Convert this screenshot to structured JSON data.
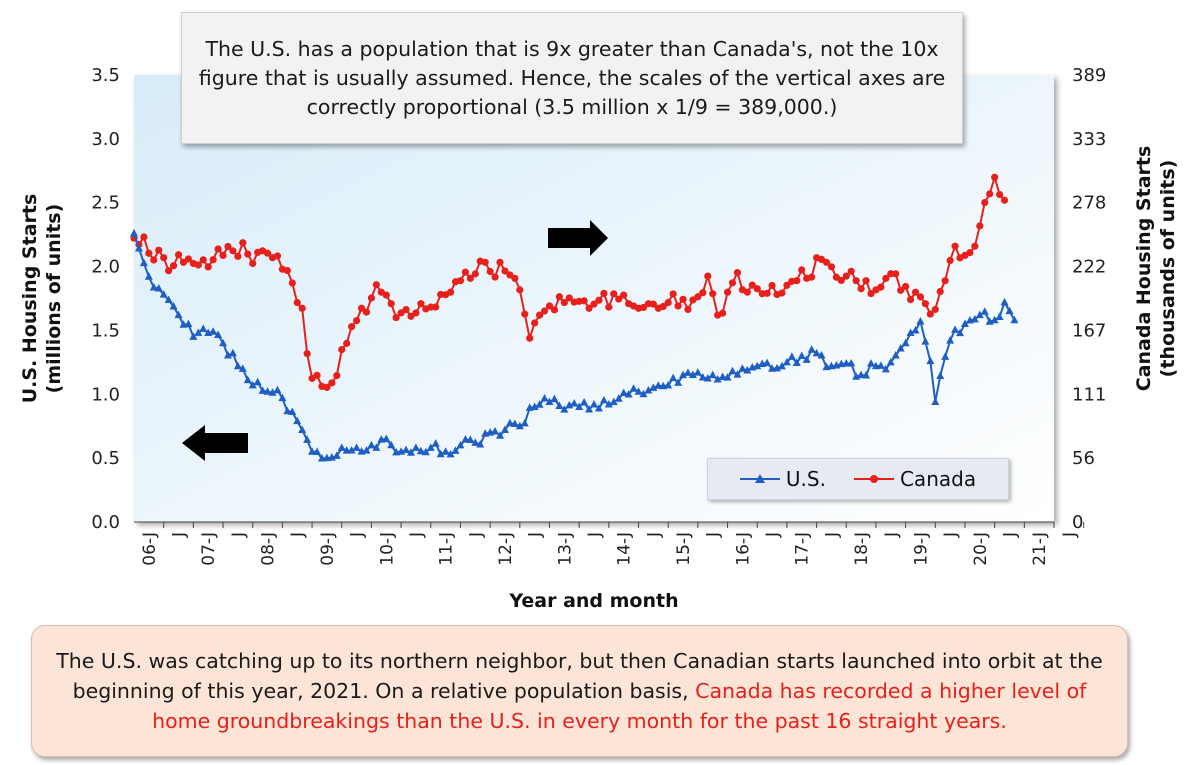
{
  "chart_data": {
    "type": "line",
    "annotation_top": "The U.S. has a population that is 9x greater than Canada's, not the 10x figure that is usually assumed. Hence, the scales of the  vertical axes are correctly proportional (3.5 million x 1/9 = 389,000.)",
    "annotation_bottom": {
      "normal": "The U.S. was catching up to its northern neighbor, but then Canadian starts launched into orbit at the beginning of this year, 2021. On a relative population basis, ",
      "highlight": "Canada has recorded a higher level of home groundbreakings than the U.S. in every month for the past 16 straight  years."
    },
    "xlabel": "Year and month",
    "ylabel_left": "U.S. Housing Starts\n(millions of units)",
    "ylabel_right": "Canada Housing Starts\n(thousands of units)",
    "ylim_left": [
      0,
      3.5
    ],
    "ylim_right": [
      0,
      389
    ],
    "yticks_left": [
      "0.0",
      "0.5",
      "1.0",
      "1.5",
      "2.0",
      "2.5",
      "3.0",
      "3.5"
    ],
    "yticks_right": [
      "0",
      "56",
      "111",
      "167",
      "222",
      "278",
      "333",
      "389"
    ],
    "xtick_labels": [
      "06-J",
      "J",
      "07-J",
      "J",
      "08-J",
      "J",
      "09-J",
      "J",
      "10-J",
      "J",
      "11-J",
      "J",
      "12-J",
      "J",
      "13-J",
      "J",
      "14-J",
      "J",
      "15-J",
      "J",
      "16-J",
      "J",
      "17-J",
      "J",
      "18-J",
      "J",
      "19-J",
      "J",
      "20-J",
      "J",
      "21-J",
      "J"
    ],
    "legend_position": "bottom-right",
    "colors": {
      "us": "#1f5fc4",
      "canada": "#e8201c",
      "arrow": "#000000"
    },
    "series": [
      {
        "name": "U.S.",
        "axis": "left",
        "anchors": [
          [
            0,
            2.26
          ],
          [
            3,
            1.92
          ],
          [
            6,
            1.78
          ],
          [
            9,
            1.62
          ],
          [
            12,
            1.45
          ],
          [
            15,
            1.48
          ],
          [
            18,
            1.4
          ],
          [
            21,
            1.22
          ],
          [
            24,
            1.07
          ],
          [
            27,
            1.02
          ],
          [
            30,
            0.97
          ],
          [
            33,
            0.79
          ],
          [
            36,
            0.55
          ],
          [
            39,
            0.5
          ],
          [
            42,
            0.58
          ],
          [
            45,
            0.58
          ],
          [
            48,
            0.6
          ],
          [
            51,
            0.65
          ],
          [
            54,
            0.55
          ],
          [
            57,
            0.58
          ],
          [
            60,
            0.58
          ],
          [
            63,
            0.55
          ],
          [
            66,
            0.6
          ],
          [
            69,
            0.62
          ],
          [
            72,
            0.7
          ],
          [
            75,
            0.72
          ],
          [
            78,
            0.75
          ],
          [
            81,
            0.9
          ],
          [
            84,
            0.94
          ],
          [
            87,
            0.88
          ],
          [
            90,
            0.9
          ],
          [
            93,
            0.92
          ],
          [
            96,
            0.92
          ],
          [
            99,
            1.01
          ],
          [
            102,
            1.02
          ],
          [
            105,
            1.05
          ],
          [
            108,
            1.07
          ],
          [
            111,
            1.15
          ],
          [
            114,
            1.17
          ],
          [
            117,
            1.15
          ],
          [
            120,
            1.13
          ],
          [
            123,
            1.2
          ],
          [
            126,
            1.22
          ],
          [
            129,
            1.2
          ],
          [
            132,
            1.25
          ],
          [
            135,
            1.3
          ],
          [
            138,
            1.32
          ],
          [
            141,
            1.22
          ],
          [
            144,
            1.24
          ],
          [
            147,
            1.15
          ],
          [
            150,
            1.22
          ],
          [
            153,
            1.25
          ],
          [
            156,
            1.4
          ],
          [
            159,
            1.57
          ],
          [
            161,
            1.26
          ],
          [
            162,
            0.94
          ],
          [
            165,
            1.42
          ],
          [
            168,
            1.55
          ],
          [
            171,
            1.62
          ],
          [
            174,
            1.58
          ],
          [
            176,
            1.72
          ],
          [
            178,
            1.58
          ]
        ],
        "wiggle": 0.045
      },
      {
        "name": "Canada",
        "axis": "right",
        "anchors": [
          [
            0,
            247
          ],
          [
            2,
            248
          ],
          [
            4,
            228
          ],
          [
            6,
            230
          ],
          [
            8,
            223
          ],
          [
            10,
            226
          ],
          [
            12,
            225
          ],
          [
            15,
            222
          ],
          [
            18,
            232
          ],
          [
            20,
            236
          ],
          [
            22,
            243
          ],
          [
            24,
            225
          ],
          [
            26,
            236
          ],
          [
            28,
            230
          ],
          [
            30,
            220
          ],
          [
            32,
            208
          ],
          [
            34,
            186
          ],
          [
            36,
            125
          ],
          [
            38,
            118
          ],
          [
            40,
            121
          ],
          [
            42,
            150
          ],
          [
            44,
            170
          ],
          [
            46,
            186
          ],
          [
            48,
            195
          ],
          [
            50,
            200
          ],
          [
            52,
            190
          ],
          [
            54,
            182
          ],
          [
            56,
            179
          ],
          [
            58,
            190
          ],
          [
            60,
            187
          ],
          [
            62,
            198
          ],
          [
            64,
            200
          ],
          [
            66,
            210
          ],
          [
            68,
            212
          ],
          [
            70,
            227
          ],
          [
            72,
            218
          ],
          [
            74,
            226
          ],
          [
            76,
            215
          ],
          [
            78,
            202
          ],
          [
            80,
            160
          ],
          [
            82,
            180
          ],
          [
            84,
            188
          ],
          [
            86,
            196
          ],
          [
            88,
            195
          ],
          [
            90,
            192
          ],
          [
            92,
            186
          ],
          [
            94,
            193
          ],
          [
            96,
            187
          ],
          [
            98,
            194
          ],
          [
            100,
            190
          ],
          [
            102,
            186
          ],
          [
            104,
            190
          ],
          [
            106,
            186
          ],
          [
            108,
            191
          ],
          [
            110,
            188
          ],
          [
            112,
            185
          ],
          [
            114,
            196
          ],
          [
            116,
            214
          ],
          [
            118,
            180
          ],
          [
            120,
            200
          ],
          [
            122,
            217
          ],
          [
            124,
            200
          ],
          [
            126,
            203
          ],
          [
            128,
            199
          ],
          [
            130,
            198
          ],
          [
            132,
            206
          ],
          [
            134,
            210
          ],
          [
            136,
            212
          ],
          [
            138,
            230
          ],
          [
            140,
            226
          ],
          [
            142,
            213
          ],
          [
            144,
            214
          ],
          [
            146,
            210
          ],
          [
            148,
            210
          ],
          [
            150,
            202
          ],
          [
            152,
            212
          ],
          [
            154,
            216
          ],
          [
            156,
            205
          ],
          [
            158,
            200
          ],
          [
            160,
            190
          ],
          [
            162,
            185
          ],
          [
            164,
            210
          ],
          [
            166,
            240
          ],
          [
            168,
            232
          ],
          [
            170,
            240
          ],
          [
            172,
            278
          ],
          [
            174,
            300
          ],
          [
            175,
            285
          ],
          [
            176,
            280
          ]
        ],
        "wiggle": 9
      }
    ]
  },
  "legend": {
    "us_label": "U.S.",
    "canada_label": "Canada"
  }
}
